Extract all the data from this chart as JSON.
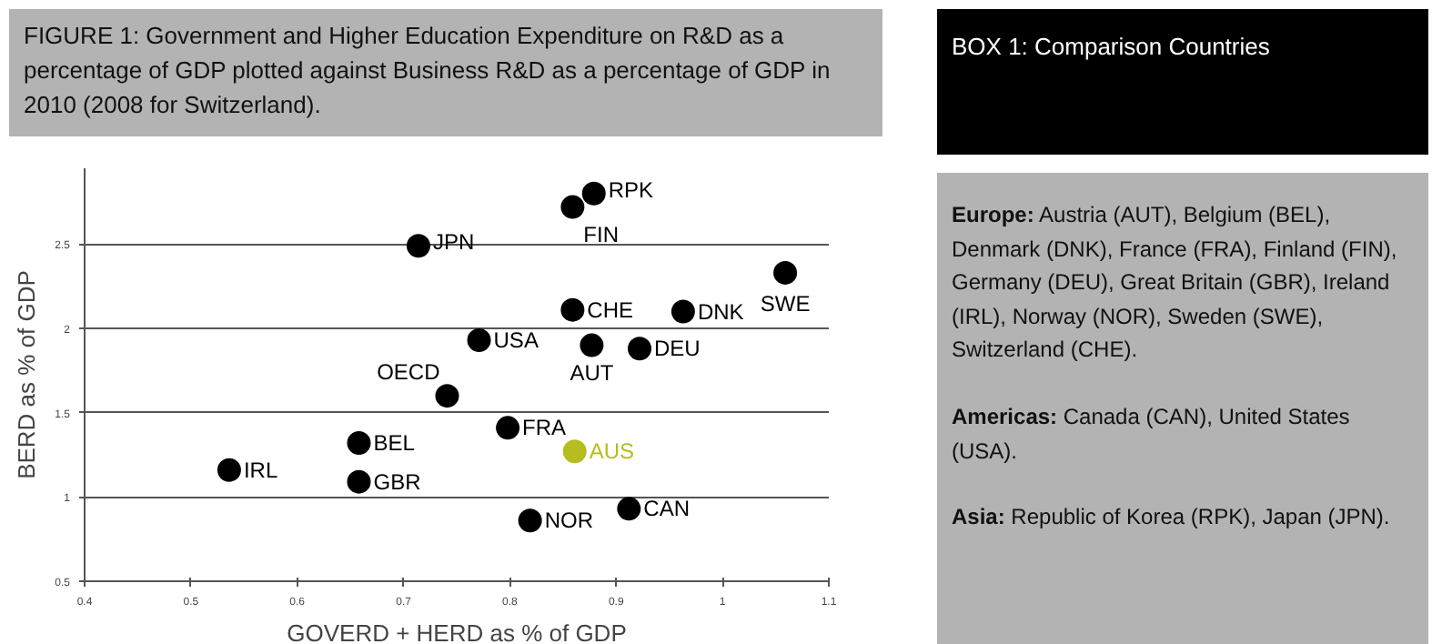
{
  "chart_data": [
    {
      "type": "scatter",
      "title": "FIGURE 1: Government and Higher Education Expenditure on R&D as a percentage of GDP plotted against Business R&D as a percentage of GDP in 2010 (2008 for Switzerland).",
      "xlabel": "GOVERD + HERD as % of GDP",
      "ylabel": "BERD as % of GDP",
      "xlim": [
        0.4,
        1.1
      ],
      "xticks": [
        0.4,
        0.5,
        0.6,
        0.7,
        0.8,
        0.9,
        1.0,
        1.1
      ],
      "ylim": [
        0.5,
        2.95
      ],
      "yticks": [
        0.5,
        1.0,
        1.5,
        2.0,
        2.5
      ],
      "grid": "y",
      "marker": "circle",
      "series": [
        {
          "name": "RPK",
          "color": "#000000",
          "x": [
            0.879
          ],
          "values": [
            2.8
          ]
        },
        {
          "name": "FIN",
          "color": "#000000",
          "x": [
            0.859
          ],
          "values": [
            2.72
          ]
        },
        {
          "name": "JPN",
          "color": "#000000",
          "x": [
            0.714
          ],
          "values": [
            2.49
          ]
        },
        {
          "name": "SWE",
          "color": "#000000",
          "x": [
            1.059
          ],
          "values": [
            2.33
          ]
        },
        {
          "name": "CHE",
          "color": "#000000",
          "x": [
            0.859
          ],
          "values": [
            2.11
          ]
        },
        {
          "name": "DNK",
          "color": "#000000",
          "x": [
            0.963
          ],
          "values": [
            2.1
          ]
        },
        {
          "name": "USA",
          "color": "#000000",
          "x": [
            0.771
          ],
          "values": [
            1.93
          ]
        },
        {
          "name": "AUT",
          "color": "#000000",
          "x": [
            0.877
          ],
          "values": [
            1.9
          ]
        },
        {
          "name": "DEU",
          "color": "#000000",
          "x": [
            0.922
          ],
          "values": [
            1.88
          ]
        },
        {
          "name": "OECD",
          "color": "#000000",
          "x": [
            0.741
          ],
          "values": [
            1.6
          ]
        },
        {
          "name": "FRA",
          "color": "#000000",
          "x": [
            0.798
          ],
          "values": [
            1.41
          ]
        },
        {
          "name": "BEL",
          "color": "#000000",
          "x": [
            0.658
          ],
          "values": [
            1.32
          ]
        },
        {
          "name": "AUS",
          "color": "#b5bd1f",
          "x": [
            0.861
          ],
          "values": [
            1.27
          ]
        },
        {
          "name": "IRL",
          "color": "#000000",
          "x": [
            0.536
          ],
          "values": [
            1.16
          ]
        },
        {
          "name": "GBR",
          "color": "#000000",
          "x": [
            0.658
          ],
          "values": [
            1.09
          ]
        },
        {
          "name": "CAN",
          "color": "#000000",
          "x": [
            0.912
          ],
          "values": [
            0.93
          ]
        },
        {
          "name": "NOR",
          "color": "#000000",
          "x": [
            0.819
          ],
          "values": [
            0.86
          ]
        }
      ]
    },
    {
      "type": "other",
      "title": "BOX 1:  Comparison Countries",
      "annotations": [
        "Europe: Austria (AUT), Belgium (BEL), Denmark (DNK), France (FRA), Finland (FIN), Germany (DEU), Great Britain (GBR), Ireland (IRL), Norway (NOR), Sweden (SWE), Switzerland (CHE).",
        "Americas: Canada (CAN), United States (USA).",
        "Asia: Republic of Korea (RPK), Japan (JPN)."
      ]
    }
  ]
}
